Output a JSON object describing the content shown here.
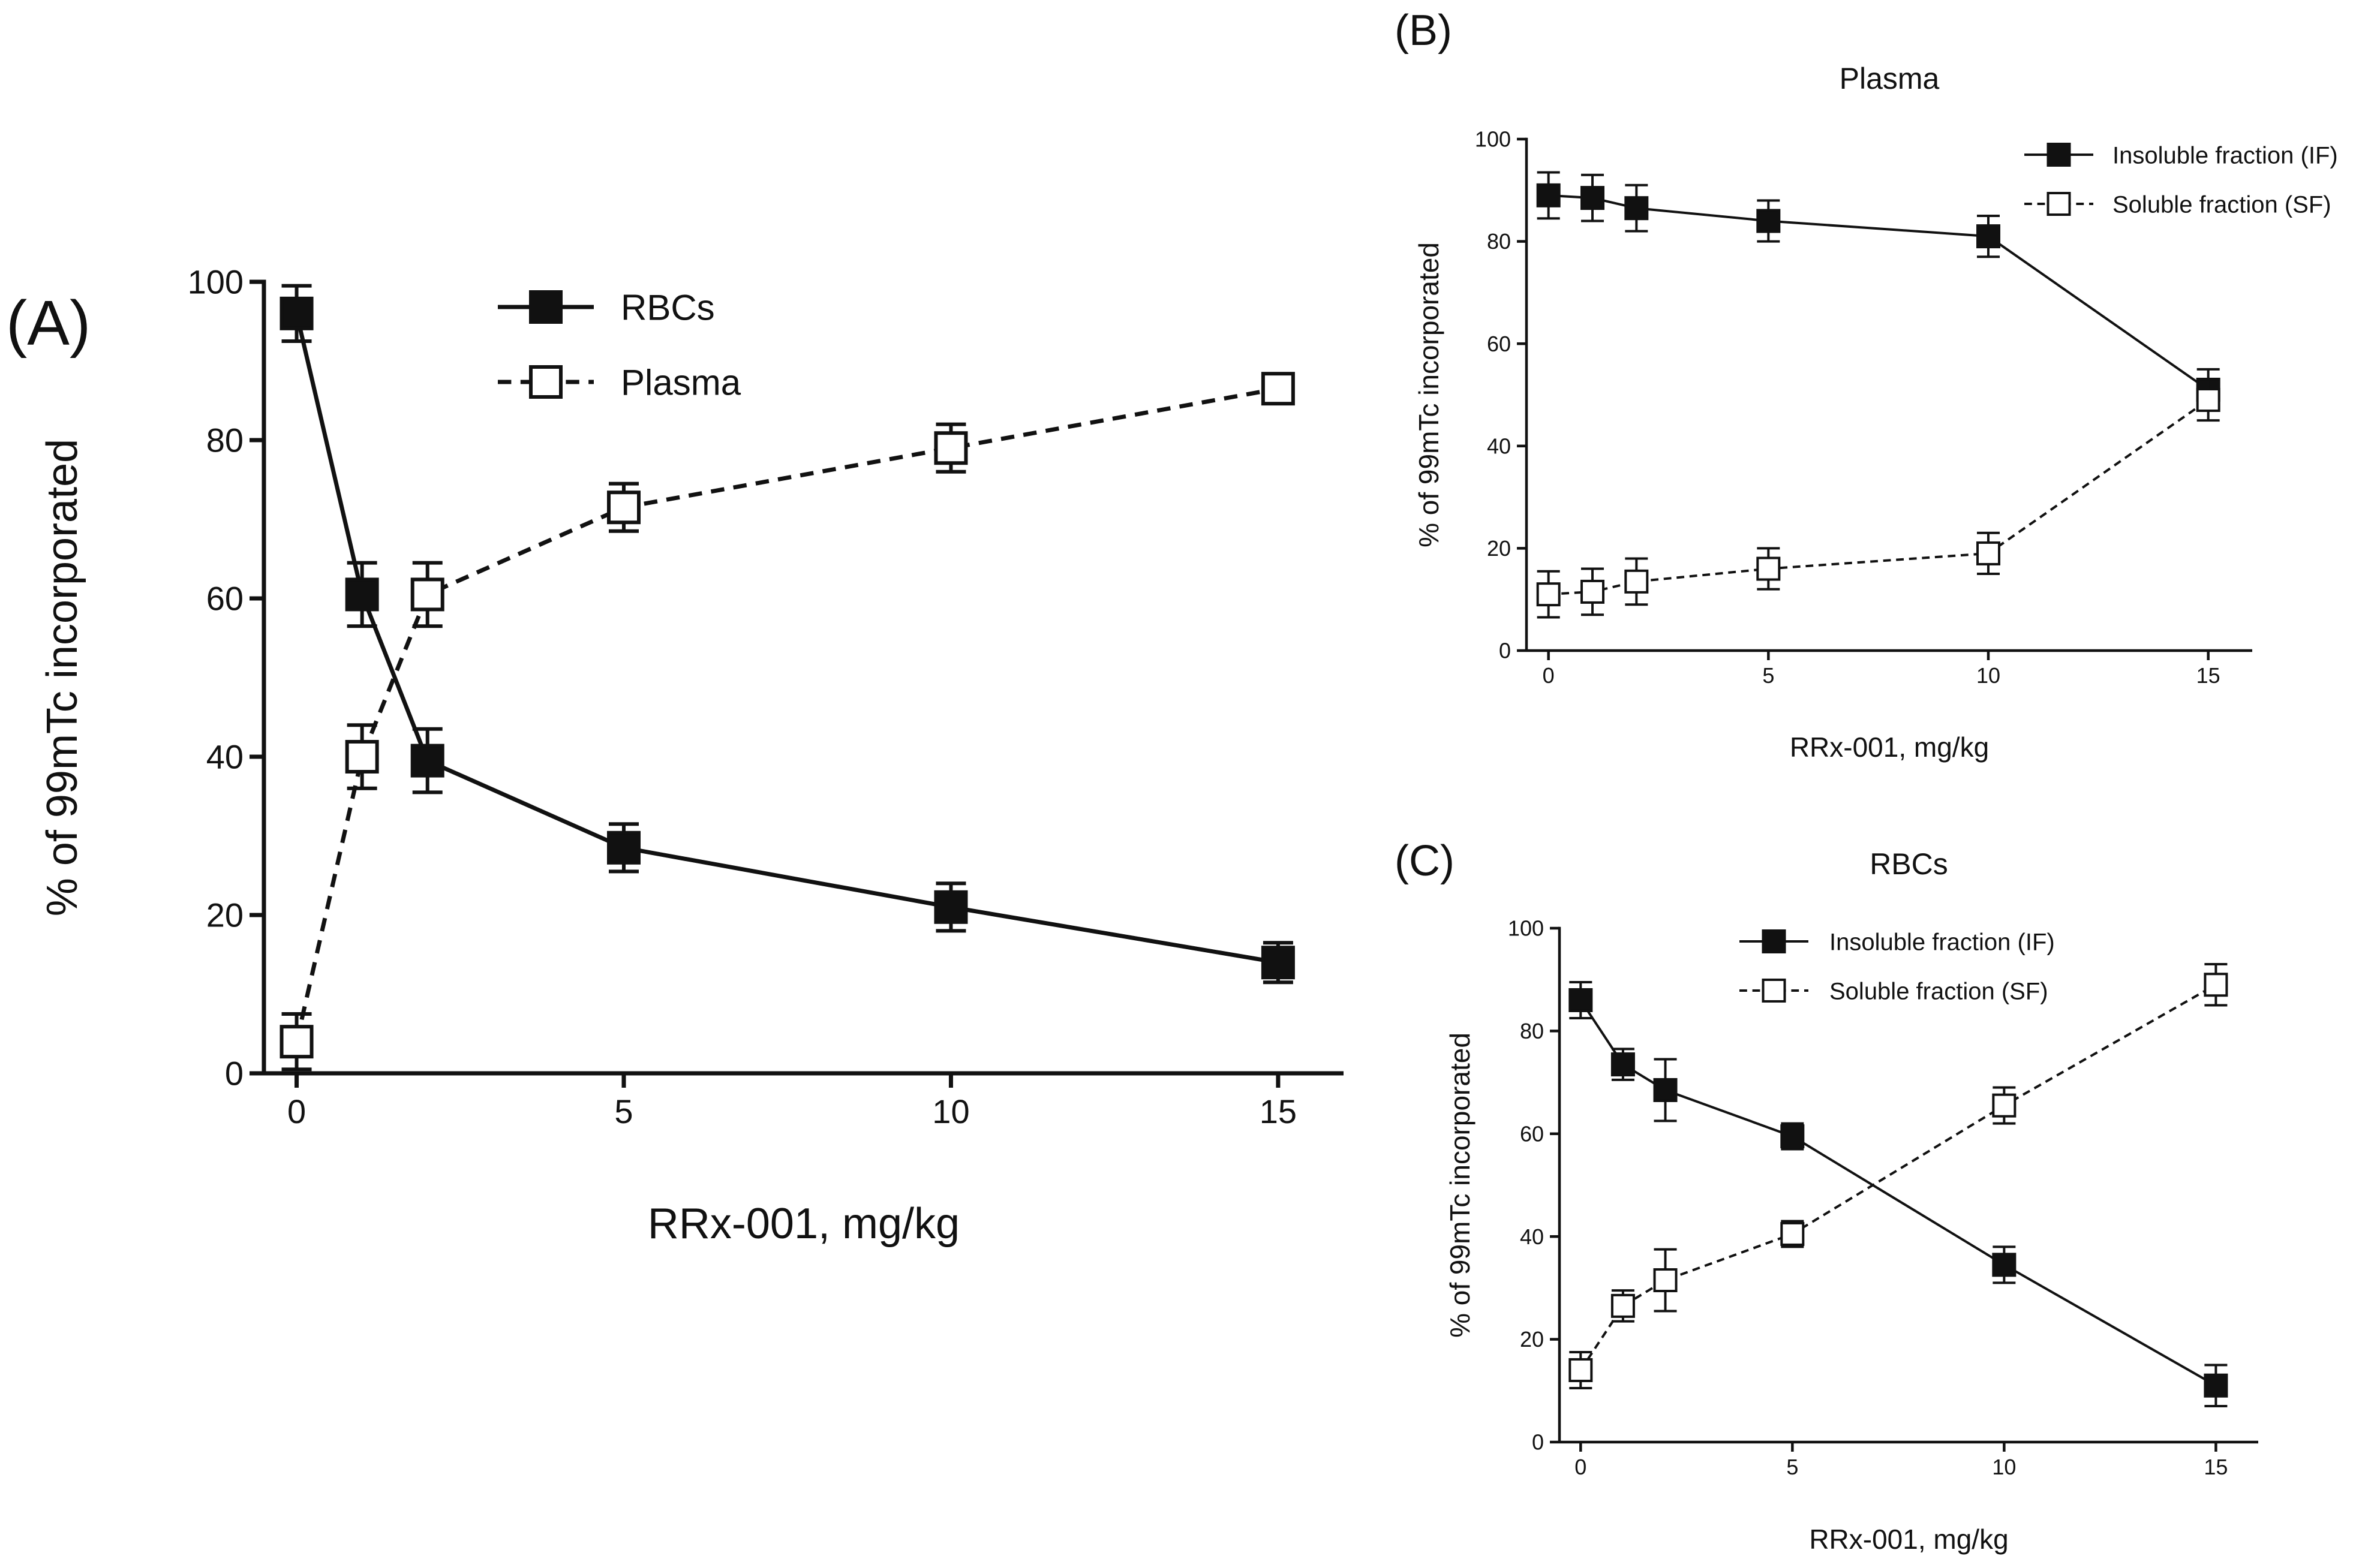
{
  "chart_data": [
    {
      "panel_label": "(A)",
      "type": "line",
      "title": "",
      "xlabel": "RRx-001, mg/kg",
      "ylabel": "% of 99mTc incorporated",
      "xlim": [
        -0.5,
        16
      ],
      "ylim": [
        0,
        100
      ],
      "xticks": [
        0,
        5,
        10,
        15
      ],
      "yticks": [
        0,
        20,
        40,
        60,
        80,
        100
      ],
      "legend_position": "top-center",
      "series": [
        {
          "name": "RBCs",
          "marker": "filled-square",
          "line": "solid",
          "x": [
            0,
            1,
            2,
            5,
            10,
            15
          ],
          "y": [
            96,
            60.5,
            39.5,
            28.5,
            21,
            14
          ],
          "err": [
            3.5,
            4,
            4,
            3,
            3,
            2.5
          ]
        },
        {
          "name": "Plasma",
          "marker": "open-square",
          "line": "dashed",
          "x": [
            0,
            1,
            2,
            5,
            10,
            15
          ],
          "y": [
            4,
            40,
            60.5,
            71.5,
            79,
            86.5
          ],
          "err": [
            3.5,
            4,
            4,
            3,
            3,
            1.5
          ]
        }
      ]
    },
    {
      "panel_label": "(B)",
      "type": "line",
      "title": "Plasma",
      "xlabel": "RRx-001, mg/kg",
      "ylabel": "% of 99mTc incorporated",
      "xlim": [
        -0.5,
        16
      ],
      "ylim": [
        0,
        100
      ],
      "xticks": [
        0,
        5,
        10,
        15
      ],
      "yticks": [
        0,
        20,
        40,
        60,
        80,
        100
      ],
      "legend_position": "top-right",
      "series": [
        {
          "name": "Insoluble fraction (IF)",
          "marker": "filled-square",
          "line": "solid",
          "x": [
            0,
            1,
            2,
            5,
            10,
            15
          ],
          "y": [
            89,
            88.5,
            86.5,
            84,
            81,
            51
          ],
          "err": [
            4.5,
            4.5,
            4.5,
            4,
            4,
            4
          ]
        },
        {
          "name": "Soluble fraction (SF)",
          "marker": "open-square",
          "line": "dashed",
          "x": [
            0,
            1,
            2,
            5,
            10,
            15
          ],
          "y": [
            11,
            11.5,
            13.5,
            16,
            19,
            49
          ],
          "err": [
            4.5,
            4.5,
            4.5,
            4,
            4,
            4
          ]
        }
      ]
    },
    {
      "panel_label": "(C)",
      "type": "line",
      "title": "RBCs",
      "xlabel": "RRx-001, mg/kg",
      "ylabel": "% of 99mTc incorporated",
      "xlim": [
        -0.5,
        16
      ],
      "ylim": [
        0,
        100
      ],
      "xticks": [
        0,
        5,
        10,
        15
      ],
      "yticks": [
        0,
        20,
        40,
        60,
        80,
        100
      ],
      "legend_position": "top-center",
      "series": [
        {
          "name": "Insoluble fraction (IF)",
          "marker": "filled-square",
          "line": "solid",
          "x": [
            0,
            1,
            2,
            5,
            10,
            15
          ],
          "y": [
            86,
            73.5,
            68.5,
            59.5,
            34.5,
            11
          ],
          "err": [
            3.5,
            3,
            6,
            2.5,
            3.5,
            4
          ]
        },
        {
          "name": "Soluble fraction (SF)",
          "marker": "open-square",
          "line": "dashed",
          "x": [
            0,
            1,
            2,
            5,
            10,
            15
          ],
          "y": [
            14,
            26.5,
            31.5,
            40.5,
            65.5,
            89
          ],
          "err": [
            3.5,
            3,
            6,
            2.5,
            3.5,
            4
          ]
        }
      ]
    }
  ]
}
